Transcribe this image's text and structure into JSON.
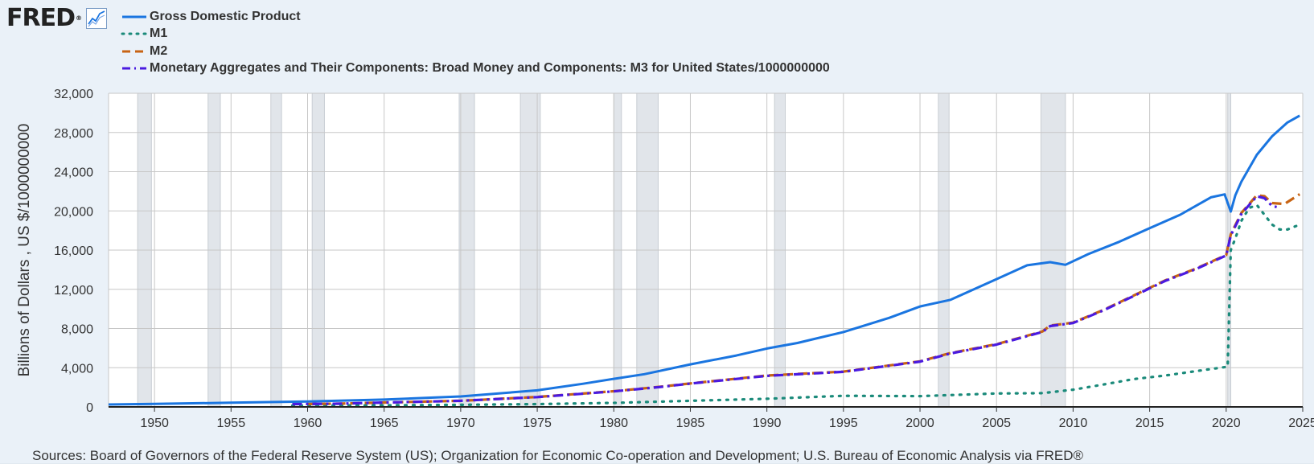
{
  "logo": {
    "text": "FRED",
    "mark": "®",
    "icon": "chart-line-icon"
  },
  "source_text": "Sources: Board of Governors of the Federal Reserve System (US); Organization for Economic Co-operation and Development; U.S. Bureau of Economic Analysis via FRED®",
  "chart_data": {
    "type": "line",
    "ylabel": "Billions of Dollars , US $/1000000000",
    "xlim": [
      1947,
      2025
    ],
    "ylim": [
      0,
      32000
    ],
    "y_ticks": [
      0,
      4000,
      8000,
      12000,
      16000,
      20000,
      24000,
      28000,
      32000
    ],
    "y_tick_labels": [
      "0",
      "4,000",
      "8,000",
      "12,000",
      "16,000",
      "20,000",
      "24,000",
      "28,000",
      "32,000"
    ],
    "x_ticks": [
      1950,
      1955,
      1960,
      1965,
      1970,
      1975,
      1980,
      1985,
      1990,
      1995,
      2000,
      2005,
      2010,
      2015,
      2020,
      2025
    ],
    "x_tick_labels": [
      "1950",
      "1955",
      "1960",
      "1965",
      "1970",
      "1975",
      "1980",
      "1985",
      "1990",
      "1995",
      "2000",
      "2005",
      "2010",
      "2015",
      "2020",
      "2025"
    ],
    "grid": true,
    "legend_position": "top-left",
    "recessions": [
      [
        1948.9,
        1949.8
      ],
      [
        1953.5,
        1954.3
      ],
      [
        1957.6,
        1958.3
      ],
      [
        1960.3,
        1961.1
      ],
      [
        1969.9,
        1970.9
      ],
      [
        1973.9,
        1975.2
      ],
      [
        1980.0,
        1980.5
      ],
      [
        1981.5,
        1982.9
      ],
      [
        1990.5,
        1991.2
      ],
      [
        2001.2,
        2001.9
      ],
      [
        2007.9,
        2009.5
      ],
      [
        2020.1,
        2020.3
      ]
    ],
    "series": [
      {
        "name": "Gross Domestic Product",
        "color": "#1a75e0",
        "style": "solid",
        "x": [
          1947,
          1950,
          1955,
          1960,
          1965,
          1970,
          1975,
          1978,
          1980,
          1982,
          1985,
          1988,
          1990,
          1992,
          1995,
          1998,
          2000,
          2002,
          2005,
          2007,
          2008.5,
          2009.5,
          2011,
          2013,
          2015,
          2017,
          2019,
          2019.9,
          2020.3,
          2020.6,
          2021,
          2022,
          2023,
          2024,
          2024.8
        ],
        "y": [
          245,
          300,
          430,
          560,
          750,
          1070,
          1690,
          2360,
          2860,
          3340,
          4340,
          5240,
          5960,
          6520,
          7640,
          9090,
          10250,
          10930,
          13040,
          14450,
          14770,
          14500,
          15600,
          16840,
          18240,
          19610,
          21380,
          21690,
          19930,
          21600,
          23000,
          25720,
          27610,
          29020,
          29720
        ]
      },
      {
        "name": "M1",
        "color": "#1a8a7a",
        "style": "dotted",
        "x": [
          1959,
          1965,
          1970,
          1975,
          1980,
          1985,
          1990,
          1995,
          2000,
          2005,
          2008,
          2010,
          2012,
          2014,
          2016,
          2018,
          2020.1,
          2020.3,
          2020.6,
          2021,
          2021.5,
          2022,
          2023,
          2023.5,
          2024,
          2024.8
        ],
        "y": [
          140,
          168,
          214,
          287,
          408,
          620,
          825,
          1130,
          1100,
          1370,
          1400,
          1760,
          2290,
          2850,
          3200,
          3640,
          4100,
          16000,
          17200,
          19000,
          20300,
          20600,
          18600,
          18100,
          18100,
          18600
        ]
      },
      {
        "name": "M2",
        "color": "#c86414",
        "style": "dashed",
        "x": [
          1959,
          1962,
          1965,
          1970,
          1975,
          1980,
          1983,
          1985,
          1990,
          1995,
          2000,
          2002,
          2005,
          2008,
          2008.5,
          2010,
          2012,
          2014,
          2016,
          2018,
          2020.0,
          2020.3,
          2021,
          2022,
          2022.5,
          2023,
          2023.8,
          2024.3,
          2024.8
        ],
        "y": [
          290,
          330,
          450,
          626,
          1015,
          1600,
          2050,
          2400,
          3200,
          3600,
          4650,
          5500,
          6400,
          7700,
          8300,
          8600,
          9900,
          11400,
          12900,
          14100,
          15500,
          17600,
          19800,
          21600,
          21500,
          20800,
          20700,
          21200,
          21700
        ]
      },
      {
        "name": "Monetary Aggregates and Their Components: Broad Money and Components: M3 for United States/1000000000",
        "color": "#4a1ae0",
        "style": "dashdot",
        "x": [
          1959,
          1962,
          1965,
          1970,
          1975,
          1980,
          1983,
          1985,
          1990,
          1995,
          2000,
          2002,
          2005,
          2008,
          2008.5,
          2010,
          2012,
          2014,
          2016,
          2018,
          2020.0,
          2020.3,
          2021,
          2022,
          2022.5,
          2023,
          2023.3
        ],
        "y": [
          290,
          330,
          440,
          620,
          1000,
          1580,
          2030,
          2380,
          3170,
          3580,
          4620,
          5460,
          6360,
          7650,
          8250,
          8560,
          9860,
          11350,
          12850,
          14050,
          15450,
          17500,
          19700,
          21500,
          21300,
          20500,
          20400
        ]
      }
    ]
  }
}
